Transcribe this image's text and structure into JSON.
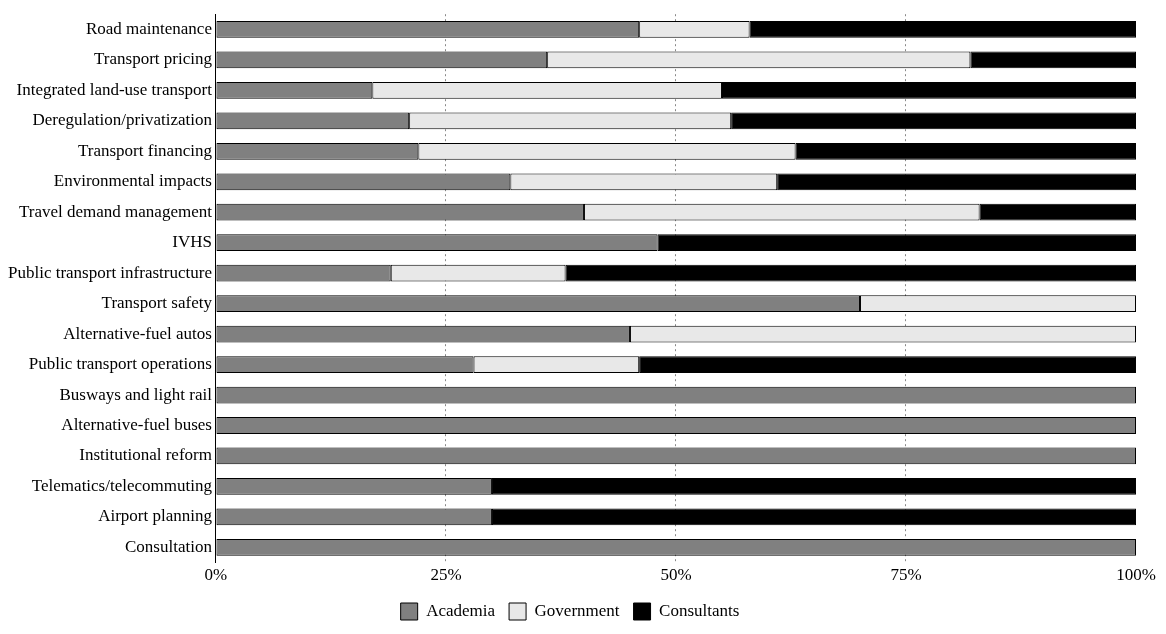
{
  "chart_data": {
    "type": "bar",
    "orientation": "horizontal",
    "stacked": true,
    "categories": [
      "Road maintenance",
      "Transport pricing",
      "Integrated land-use transport",
      "Deregulation/privatization",
      "Transport financing",
      "Environmental impacts",
      "Travel demand management",
      "IVHS",
      "Public transport infrastructure",
      "Transport safety",
      "Alternative-fuel autos",
      "Public transport operations",
      "Busways and light rail",
      "Alternative-fuel buses",
      "Institutional reform",
      "Telematics/telecommuting",
      "Airport planning",
      "Consultation"
    ],
    "series": [
      {
        "name": "Academia",
        "color": "#808080",
        "values": [
          46,
          36,
          17,
          21,
          22,
          32,
          40,
          48,
          19,
          70,
          45,
          28,
          100,
          100,
          100,
          30,
          30,
          100
        ]
      },
      {
        "name": "Government",
        "color": "#e8e8e8",
        "values": [
          12,
          46,
          38,
          35,
          41,
          29,
          43,
          0,
          19,
          30,
          55,
          18,
          0,
          0,
          0,
          0,
          0,
          0
        ]
      },
      {
        "name": "Consultants",
        "color": "#000000",
        "values": [
          42,
          18,
          45,
          44,
          37,
          39,
          17,
          52,
          62,
          0,
          0,
          54,
          0,
          0,
          0,
          70,
          70,
          0
        ]
      }
    ],
    "xlim": [
      0,
      100
    ],
    "xticks": [
      {
        "value": 0,
        "label": "0%"
      },
      {
        "value": 25,
        "label": "25%"
      },
      {
        "value": 50,
        "label": "50%"
      },
      {
        "value": 75,
        "label": "75%"
      },
      {
        "value": 100,
        "label": "100%"
      }
    ],
    "grid": "x",
    "legend": "bottom"
  }
}
